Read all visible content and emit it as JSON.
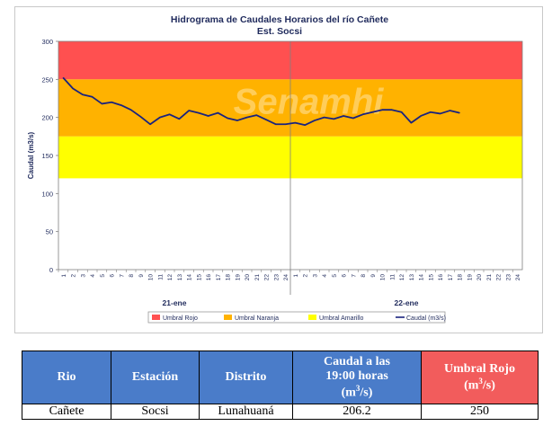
{
  "chart_data": {
    "type": "line",
    "title": "Hidrograma de Caudales Horarios del río Cañete",
    "subtitle": "Est. Socsi",
    "ylabel": "Caudal  (m3/s)",
    "ylim": [
      0,
      300
    ],
    "yticks": [
      0,
      50,
      100,
      150,
      200,
      250,
      300
    ],
    "x_hour_labels": [
      "1",
      "2",
      "3",
      "4",
      "5",
      "6",
      "7",
      "8",
      "9",
      "10",
      "11",
      "12",
      "13",
      "14",
      "15",
      "16",
      "17",
      "18",
      "19",
      "20",
      "21",
      "22",
      "23",
      "24"
    ],
    "day_labels": [
      "21-ene",
      "22-ene"
    ],
    "bands": [
      {
        "name": "Umbral Rojo",
        "from": 250,
        "to": 300,
        "color": "#ff5050"
      },
      {
        "name": "Umbral Naranja",
        "from": 175,
        "to": 250,
        "color": "#ffb200"
      },
      {
        "name": "Umbral Amarillo",
        "from": 120,
        "to": 175,
        "color": "#ffff00"
      }
    ],
    "series": [
      {
        "name": "Caudal (m3/s)",
        "color": "#1a237e",
        "values": [
          252,
          238,
          230,
          227,
          218,
          220,
          216,
          210,
          201,
          191,
          200,
          204,
          198,
          209,
          206,
          202,
          206,
          199,
          196,
          200,
          203,
          197,
          191,
          191,
          193,
          190,
          196,
          200,
          198,
          202,
          199,
          204,
          207,
          210,
          210,
          207,
          193,
          202,
          207,
          205,
          209,
          206
        ]
      }
    ],
    "legend": [
      "Umbral Rojo",
      "Umbral Naranja",
      "Umbral Amarillo",
      "Caudal (m3/s)"
    ],
    "legend_position": "bottom",
    "watermark": "Senamhi"
  },
  "table": {
    "headers": [
      "Rio",
      "Estación",
      "Distrito",
      "Caudal a las 19:00 horas (m3/s)",
      "Umbral Rojo (m3/s)"
    ],
    "row": [
      "Cañete",
      "Socsi",
      "Lunahuaná",
      "206.2",
      "250"
    ]
  },
  "colors": {
    "header_blue": "#4a7cc9",
    "header_red": "#f25c5c"
  }
}
